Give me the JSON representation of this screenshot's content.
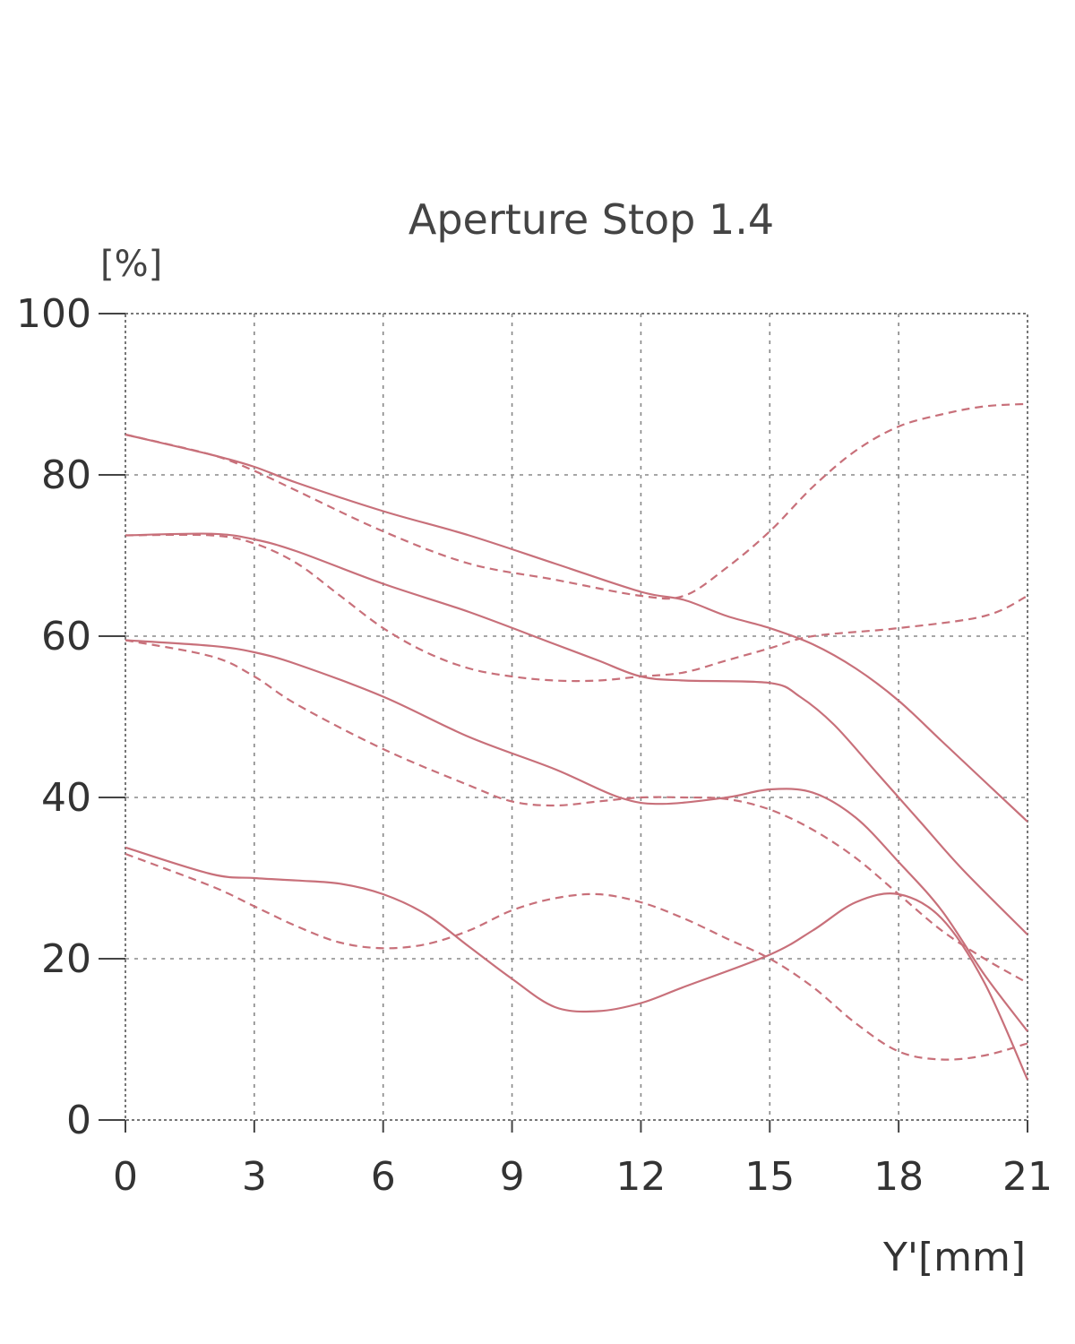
{
  "chart_data": {
    "type": "line",
    "title": "Aperture Stop 1.4",
    "ylabel": "[%]",
    "xlabel": "Y'[mm]",
    "xlim": [
      0,
      21
    ],
    "ylim": [
      0,
      100
    ],
    "xticks": [
      0,
      3,
      6,
      9,
      12,
      15,
      18,
      21
    ],
    "yticks": [
      0,
      20,
      40,
      60,
      80,
      100
    ],
    "grid": true,
    "line_color": "#c8707a",
    "series": [
      {
        "style": "solid",
        "points": [
          [
            0,
            85
          ],
          [
            2,
            82.5
          ],
          [
            3,
            81
          ],
          [
            4,
            79
          ],
          [
            6,
            75.5
          ],
          [
            8,
            72.5
          ],
          [
            10,
            69
          ],
          [
            12,
            65.5
          ],
          [
            13,
            64.5
          ],
          [
            14,
            62.5
          ],
          [
            15,
            61
          ],
          [
            16,
            59
          ],
          [
            17,
            56
          ],
          [
            18,
            52
          ],
          [
            19,
            47
          ],
          [
            20,
            42
          ],
          [
            21,
            37
          ]
        ]
      },
      {
        "style": "solid",
        "points": [
          [
            0,
            72.5
          ],
          [
            2,
            72.7
          ],
          [
            3,
            72
          ],
          [
            4,
            70.5
          ],
          [
            6,
            66.5
          ],
          [
            8,
            63
          ],
          [
            10,
            59
          ],
          [
            11,
            57
          ],
          [
            12,
            55
          ],
          [
            13,
            54.5
          ],
          [
            15,
            54.2
          ],
          [
            15.7,
            52.5
          ],
          [
            16.5,
            49
          ],
          [
            17.5,
            43
          ],
          [
            18.5,
            37
          ],
          [
            19.5,
            31
          ],
          [
            21,
            23
          ]
        ]
      },
      {
        "style": "solid",
        "points": [
          [
            0,
            59.5
          ],
          [
            2,
            58.8
          ],
          [
            3,
            58
          ],
          [
            4,
            56.5
          ],
          [
            6,
            52.5
          ],
          [
            8,
            47.5
          ],
          [
            10,
            43.5
          ],
          [
            11.5,
            40
          ],
          [
            12.5,
            39.2
          ],
          [
            14,
            40
          ],
          [
            15,
            41
          ],
          [
            16,
            40.6
          ],
          [
            17,
            37.5
          ],
          [
            18,
            32
          ],
          [
            19,
            26
          ],
          [
            20,
            18
          ],
          [
            21,
            11
          ]
        ]
      },
      {
        "style": "solid",
        "points": [
          [
            0,
            33.8
          ],
          [
            2,
            30.5
          ],
          [
            3,
            30
          ],
          [
            4,
            29.7
          ],
          [
            5,
            29.3
          ],
          [
            6,
            28
          ],
          [
            7,
            25.5
          ],
          [
            8,
            21.5
          ],
          [
            9,
            17.5
          ],
          [
            10,
            14
          ],
          [
            11,
            13.5
          ],
          [
            12,
            14.5
          ],
          [
            13,
            16.5
          ],
          [
            15,
            20.5
          ],
          [
            16,
            23.5
          ],
          [
            17,
            27
          ],
          [
            18,
            28
          ],
          [
            19,
            25
          ],
          [
            20,
            17
          ],
          [
            21,
            5
          ]
        ]
      },
      {
        "style": "dashed",
        "points": [
          [
            0,
            85
          ],
          [
            2,
            82.5
          ],
          [
            3,
            80.5
          ],
          [
            4,
            78
          ],
          [
            6,
            73
          ],
          [
            8,
            69
          ],
          [
            10,
            67
          ],
          [
            12,
            65
          ],
          [
            13,
            65
          ],
          [
            14,
            68.5
          ],
          [
            15,
            73
          ],
          [
            16,
            78.5
          ],
          [
            17,
            83
          ],
          [
            18,
            86
          ],
          [
            19,
            87.5
          ],
          [
            20,
            88.5
          ],
          [
            21,
            88.8
          ]
        ]
      },
      {
        "style": "dashed",
        "points": [
          [
            0,
            72.5
          ],
          [
            2,
            72.5
          ],
          [
            3,
            71.5
          ],
          [
            4,
            69
          ],
          [
            5,
            65
          ],
          [
            6,
            61
          ],
          [
            7,
            58
          ],
          [
            8,
            56
          ],
          [
            9,
            55
          ],
          [
            10,
            54.5
          ],
          [
            11,
            54.5
          ],
          [
            12,
            55
          ],
          [
            13,
            55.5
          ],
          [
            14,
            57
          ],
          [
            15,
            58.5
          ],
          [
            16,
            60
          ],
          [
            18,
            61
          ],
          [
            20,
            62.5
          ],
          [
            21,
            65
          ]
        ]
      },
      {
        "style": "dashed",
        "points": [
          [
            0,
            59.5
          ],
          [
            2,
            57.5
          ],
          [
            3,
            55
          ],
          [
            4,
            51.5
          ],
          [
            6,
            46
          ],
          [
            8,
            41.5
          ],
          [
            9,
            39.5
          ],
          [
            10,
            39
          ],
          [
            11,
            39.5
          ],
          [
            12,
            40
          ],
          [
            13,
            40
          ],
          [
            14,
            39.8
          ],
          [
            15,
            38.5
          ],
          [
            16,
            36
          ],
          [
            17,
            32.5
          ],
          [
            18,
            28
          ],
          [
            19,
            23.5
          ],
          [
            20,
            20
          ],
          [
            21,
            17
          ]
        ]
      },
      {
        "style": "dashed",
        "points": [
          [
            0,
            33
          ],
          [
            2,
            29
          ],
          [
            3,
            26.5
          ],
          [
            4,
            24
          ],
          [
            5,
            22
          ],
          [
            6,
            21.3
          ],
          [
            7,
            21.8
          ],
          [
            8,
            23.5
          ],
          [
            9,
            26
          ],
          [
            10,
            27.5
          ],
          [
            11,
            28
          ],
          [
            12,
            27
          ],
          [
            13,
            25
          ],
          [
            14,
            22.5
          ],
          [
            15,
            20
          ],
          [
            16,
            16.5
          ],
          [
            17,
            12
          ],
          [
            18,
            8.5
          ],
          [
            19,
            7.5
          ],
          [
            20,
            8
          ],
          [
            21,
            9.5
          ]
        ]
      }
    ]
  }
}
